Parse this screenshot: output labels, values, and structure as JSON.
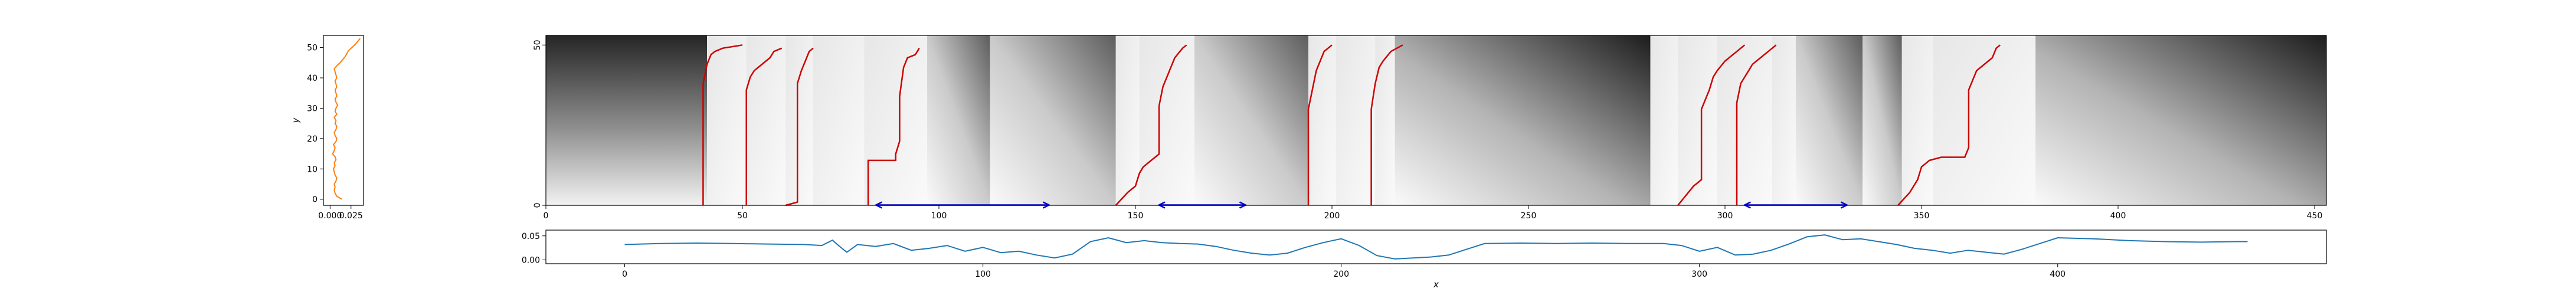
{
  "chart_data": [
    {
      "id": "marginal-y",
      "type": "line",
      "orientation": "vertical",
      "ylabel": "y",
      "ylim": [
        -2,
        54
      ],
      "xlim": [
        -0.008,
        0.04
      ],
      "yticks": [
        0,
        10,
        20,
        30,
        40,
        50
      ],
      "xticks": [
        0.0,
        0.025
      ],
      "xtick_labels": [
        "0.000",
        "0.025"
      ],
      "color": "#ff7f0e",
      "y": [
        0,
        1,
        2,
        3,
        4,
        5,
        6,
        7,
        8,
        9,
        10,
        11,
        12,
        13,
        14,
        15,
        16,
        17,
        18,
        19,
        20,
        21,
        22,
        23,
        24,
        25,
        26,
        27,
        28,
        29,
        30,
        31,
        32,
        33,
        34,
        35,
        36,
        37,
        38,
        39,
        40,
        41,
        42,
        43,
        44,
        45,
        46,
        47,
        48,
        49,
        50,
        51,
        52,
        53
      ],
      "x": [
        0.014,
        0.008,
        0.006,
        0.005,
        0.006,
        0.005,
        0.007,
        0.008,
        0.006,
        0.005,
        0.004,
        0.006,
        0.005,
        0.007,
        0.006,
        0.003,
        0.005,
        0.006,
        0.004,
        0.007,
        0.008,
        0.006,
        0.005,
        0.007,
        0.008,
        0.006,
        0.007,
        0.005,
        0.008,
        0.006,
        0.007,
        0.009,
        0.007,
        0.006,
        0.008,
        0.007,
        0.006,
        0.008,
        0.007,
        0.006,
        0.008,
        0.007,
        0.006,
        0.005,
        0.008,
        0.012,
        0.015,
        0.018,
        0.02,
        0.022,
        0.026,
        0.03,
        0.033,
        0.036
      ]
    },
    {
      "id": "heatmap",
      "type": "heatmap",
      "colormap": "gray_r",
      "xlim": [
        0,
        453
      ],
      "ylim": [
        0,
        53
      ],
      "xticks": [
        0,
        50,
        100,
        150,
        200,
        250,
        300,
        350,
        400,
        450
      ],
      "yticks": [
        0,
        50
      ],
      "segments": [
        {
          "x0": 0,
          "x1": 41,
          "style": "dark-top-left"
        },
        {
          "x0": 41,
          "x1": 51,
          "style": "light"
        },
        {
          "x0": 51,
          "x1": 61,
          "style": "light"
        },
        {
          "x0": 61,
          "x1": 68,
          "style": "light"
        },
        {
          "x0": 68,
          "x1": 81,
          "style": "light"
        },
        {
          "x0": 81,
          "x1": 97,
          "style": "light"
        },
        {
          "x0": 97,
          "x1": 113,
          "style": "mid-triangle"
        },
        {
          "x0": 113,
          "x1": 145,
          "style": "mid-triangle"
        },
        {
          "x0": 145,
          "x1": 151,
          "style": "light"
        },
        {
          "x0": 151,
          "x1": 165,
          "style": "light"
        },
        {
          "x0": 165,
          "x1": 194,
          "style": "mid-triangle"
        },
        {
          "x0": 194,
          "x1": 201,
          "style": "light"
        },
        {
          "x0": 201,
          "x1": 211,
          "style": "light"
        },
        {
          "x0": 211,
          "x1": 216,
          "style": "light"
        },
        {
          "x0": 216,
          "x1": 281,
          "style": "dark-triangle"
        },
        {
          "x0": 281,
          "x1": 288,
          "style": "light"
        },
        {
          "x0": 288,
          "x1": 298,
          "style": "light"
        },
        {
          "x0": 298,
          "x1": 312,
          "style": "light"
        },
        {
          "x0": 312,
          "x1": 318,
          "style": "light"
        },
        {
          "x0": 318,
          "x1": 335,
          "style": "mid-triangle"
        },
        {
          "x0": 335,
          "x1": 345,
          "style": "mid-triangle"
        },
        {
          "x0": 345,
          "x1": 353,
          "style": "light"
        },
        {
          "x0": 353,
          "x1": 379,
          "style": "light"
        },
        {
          "x0": 379,
          "x1": 453,
          "style": "dark-triangle"
        }
      ],
      "paths": [
        {
          "color": "#cc0000",
          "points": [
            [
              40,
              0
            ],
            [
              40,
              38
            ],
            [
              41,
              44
            ],
            [
              42,
              47
            ],
            [
              43,
              48
            ],
            [
              45,
              49
            ],
            [
              50,
              50
            ]
          ]
        },
        {
          "color": "#cc0000",
          "points": [
            [
              51,
              0
            ],
            [
              51,
              36
            ],
            [
              52,
              40
            ],
            [
              53,
              42
            ],
            [
              55,
              44
            ],
            [
              57,
              46
            ],
            [
              58,
              48
            ],
            [
              60,
              49
            ]
          ]
        },
        {
          "color": "#cc0000",
          "points": [
            [
              61,
              0
            ],
            [
              64,
              1
            ],
            [
              64,
              38
            ],
            [
              65,
              42
            ],
            [
              66,
              45
            ],
            [
              67,
              48
            ],
            [
              68,
              49
            ]
          ]
        },
        {
          "color": "#cc0000",
          "points": [
            [
              82,
              0
            ],
            [
              82,
              14
            ],
            [
              84,
              14
            ],
            [
              89,
              14
            ],
            [
              89,
              16
            ],
            [
              90,
              20
            ],
            [
              90,
              34
            ],
            [
              91,
              43
            ],
            [
              92,
              46
            ],
            [
              94,
              47
            ],
            [
              95,
              49
            ]
          ]
        },
        {
          "color": "#cc0000",
          "points": [
            [
              145,
              0
            ],
            [
              148,
              4
            ],
            [
              150,
              6
            ],
            [
              151,
              10
            ],
            [
              152,
              12
            ],
            [
              154,
              14
            ],
            [
              156,
              16
            ],
            [
              156,
              26
            ],
            [
              156,
              31
            ],
            [
              157,
              37
            ],
            [
              158,
              40
            ],
            [
              159,
              43
            ],
            [
              160,
              46
            ],
            [
              162,
              49
            ],
            [
              163,
              50
            ]
          ]
        },
        {
          "color": "#cc0000",
          "points": [
            [
              194,
              0
            ],
            [
              194,
              30
            ],
            [
              195,
              36
            ],
            [
              196,
              42
            ],
            [
              197,
              45
            ],
            [
              198,
              48
            ],
            [
              200,
              50
            ]
          ]
        },
        {
          "color": "#cc0000",
          "points": [
            [
              210,
              0
            ],
            [
              210,
              30
            ],
            [
              211,
              38
            ],
            [
              212,
              43
            ],
            [
              213,
              45
            ],
            [
              215,
              48
            ],
            [
              218,
              50
            ]
          ]
        },
        {
          "color": "#cc0000",
          "points": [
            [
              288,
              0
            ],
            [
              292,
              6
            ],
            [
              294,
              8
            ],
            [
              294,
              30
            ],
            [
              296,
              36
            ],
            [
              297,
              40
            ],
            [
              298,
              42
            ],
            [
              300,
              45
            ],
            [
              303,
              48
            ],
            [
              305,
              50
            ]
          ]
        },
        {
          "color": "#cc0000",
          "points": [
            [
              303,
              0
            ],
            [
              303,
              32
            ],
            [
              304,
              38
            ],
            [
              306,
              42
            ],
            [
              307,
              44
            ],
            [
              309,
              46
            ],
            [
              311,
              48
            ],
            [
              313,
              50
            ]
          ]
        },
        {
          "color": "#cc0000",
          "points": [
            [
              344,
              0
            ],
            [
              347,
              4
            ],
            [
              349,
              8
            ],
            [
              350,
              12
            ],
            [
              352,
              14
            ],
            [
              355,
              15
            ],
            [
              361,
              15
            ],
            [
              362,
              18
            ],
            [
              362,
              36
            ],
            [
              364,
              42
            ],
            [
              366,
              44
            ],
            [
              368,
              46
            ],
            [
              369,
              49
            ],
            [
              370,
              50
            ]
          ]
        }
      ],
      "intervals": [
        {
          "color": "#0000cc",
          "x0": 84,
          "x1": 128,
          "y": 0
        },
        {
          "color": "#0000cc",
          "x0": 156,
          "x1": 178,
          "y": 0
        },
        {
          "color": "#0000cc",
          "x0": 305,
          "x1": 331,
          "y": 0
        }
      ]
    },
    {
      "id": "marginal-x",
      "type": "line",
      "xlabel": "x",
      "xlim": [
        -22,
        475
      ],
      "ylim": [
        -0.008,
        0.062
      ],
      "xticks": [
        0,
        100,
        200,
        300,
        400
      ],
      "yticks": [
        0.0,
        0.05
      ],
      "ytick_labels": [
        "0.00",
        "0.05"
      ],
      "color": "#1f77b4",
      "x": [
        0,
        10,
        20,
        30,
        40,
        50,
        55,
        58,
        60,
        62,
        65,
        70,
        75,
        80,
        85,
        90,
        95,
        100,
        105,
        110,
        115,
        120,
        125,
        130,
        135,
        140,
        145,
        150,
        155,
        160,
        165,
        170,
        175,
        180,
        185,
        190,
        195,
        200,
        205,
        210,
        215,
        220,
        225,
        230,
        240,
        250,
        260,
        270,
        280,
        290,
        295,
        300,
        305,
        310,
        315,
        320,
        325,
        330,
        335,
        340,
        345,
        350,
        355,
        360,
        365,
        370,
        375,
        380,
        385,
        390,
        395,
        400,
        410,
        420,
        430,
        440,
        450,
        453
      ],
      "y": [
        0.032,
        0.034,
        0.035,
        0.034,
        0.033,
        0.032,
        0.03,
        0.041,
        0.028,
        0.016,
        0.032,
        0.028,
        0.034,
        0.02,
        0.024,
        0.03,
        0.018,
        0.026,
        0.015,
        0.018,
        0.01,
        0.004,
        0.012,
        0.038,
        0.046,
        0.036,
        0.04,
        0.036,
        0.034,
        0.033,
        0.028,
        0.02,
        0.014,
        0.01,
        0.014,
        0.026,
        0.036,
        0.044,
        0.03,
        0.009,
        0.002,
        0.004,
        0.006,
        0.01,
        0.034,
        0.035,
        0.034,
        0.035,
        0.034,
        0.034,
        0.03,
        0.018,
        0.026,
        0.01,
        0.012,
        0.02,
        0.033,
        0.048,
        0.052,
        0.042,
        0.044,
        0.038,
        0.032,
        0.024,
        0.02,
        0.014,
        0.02,
        0.016,
        0.012,
        0.022,
        0.034,
        0.046,
        0.044,
        0.04,
        0.038,
        0.037,
        0.038,
        0.038
      ]
    }
  ]
}
